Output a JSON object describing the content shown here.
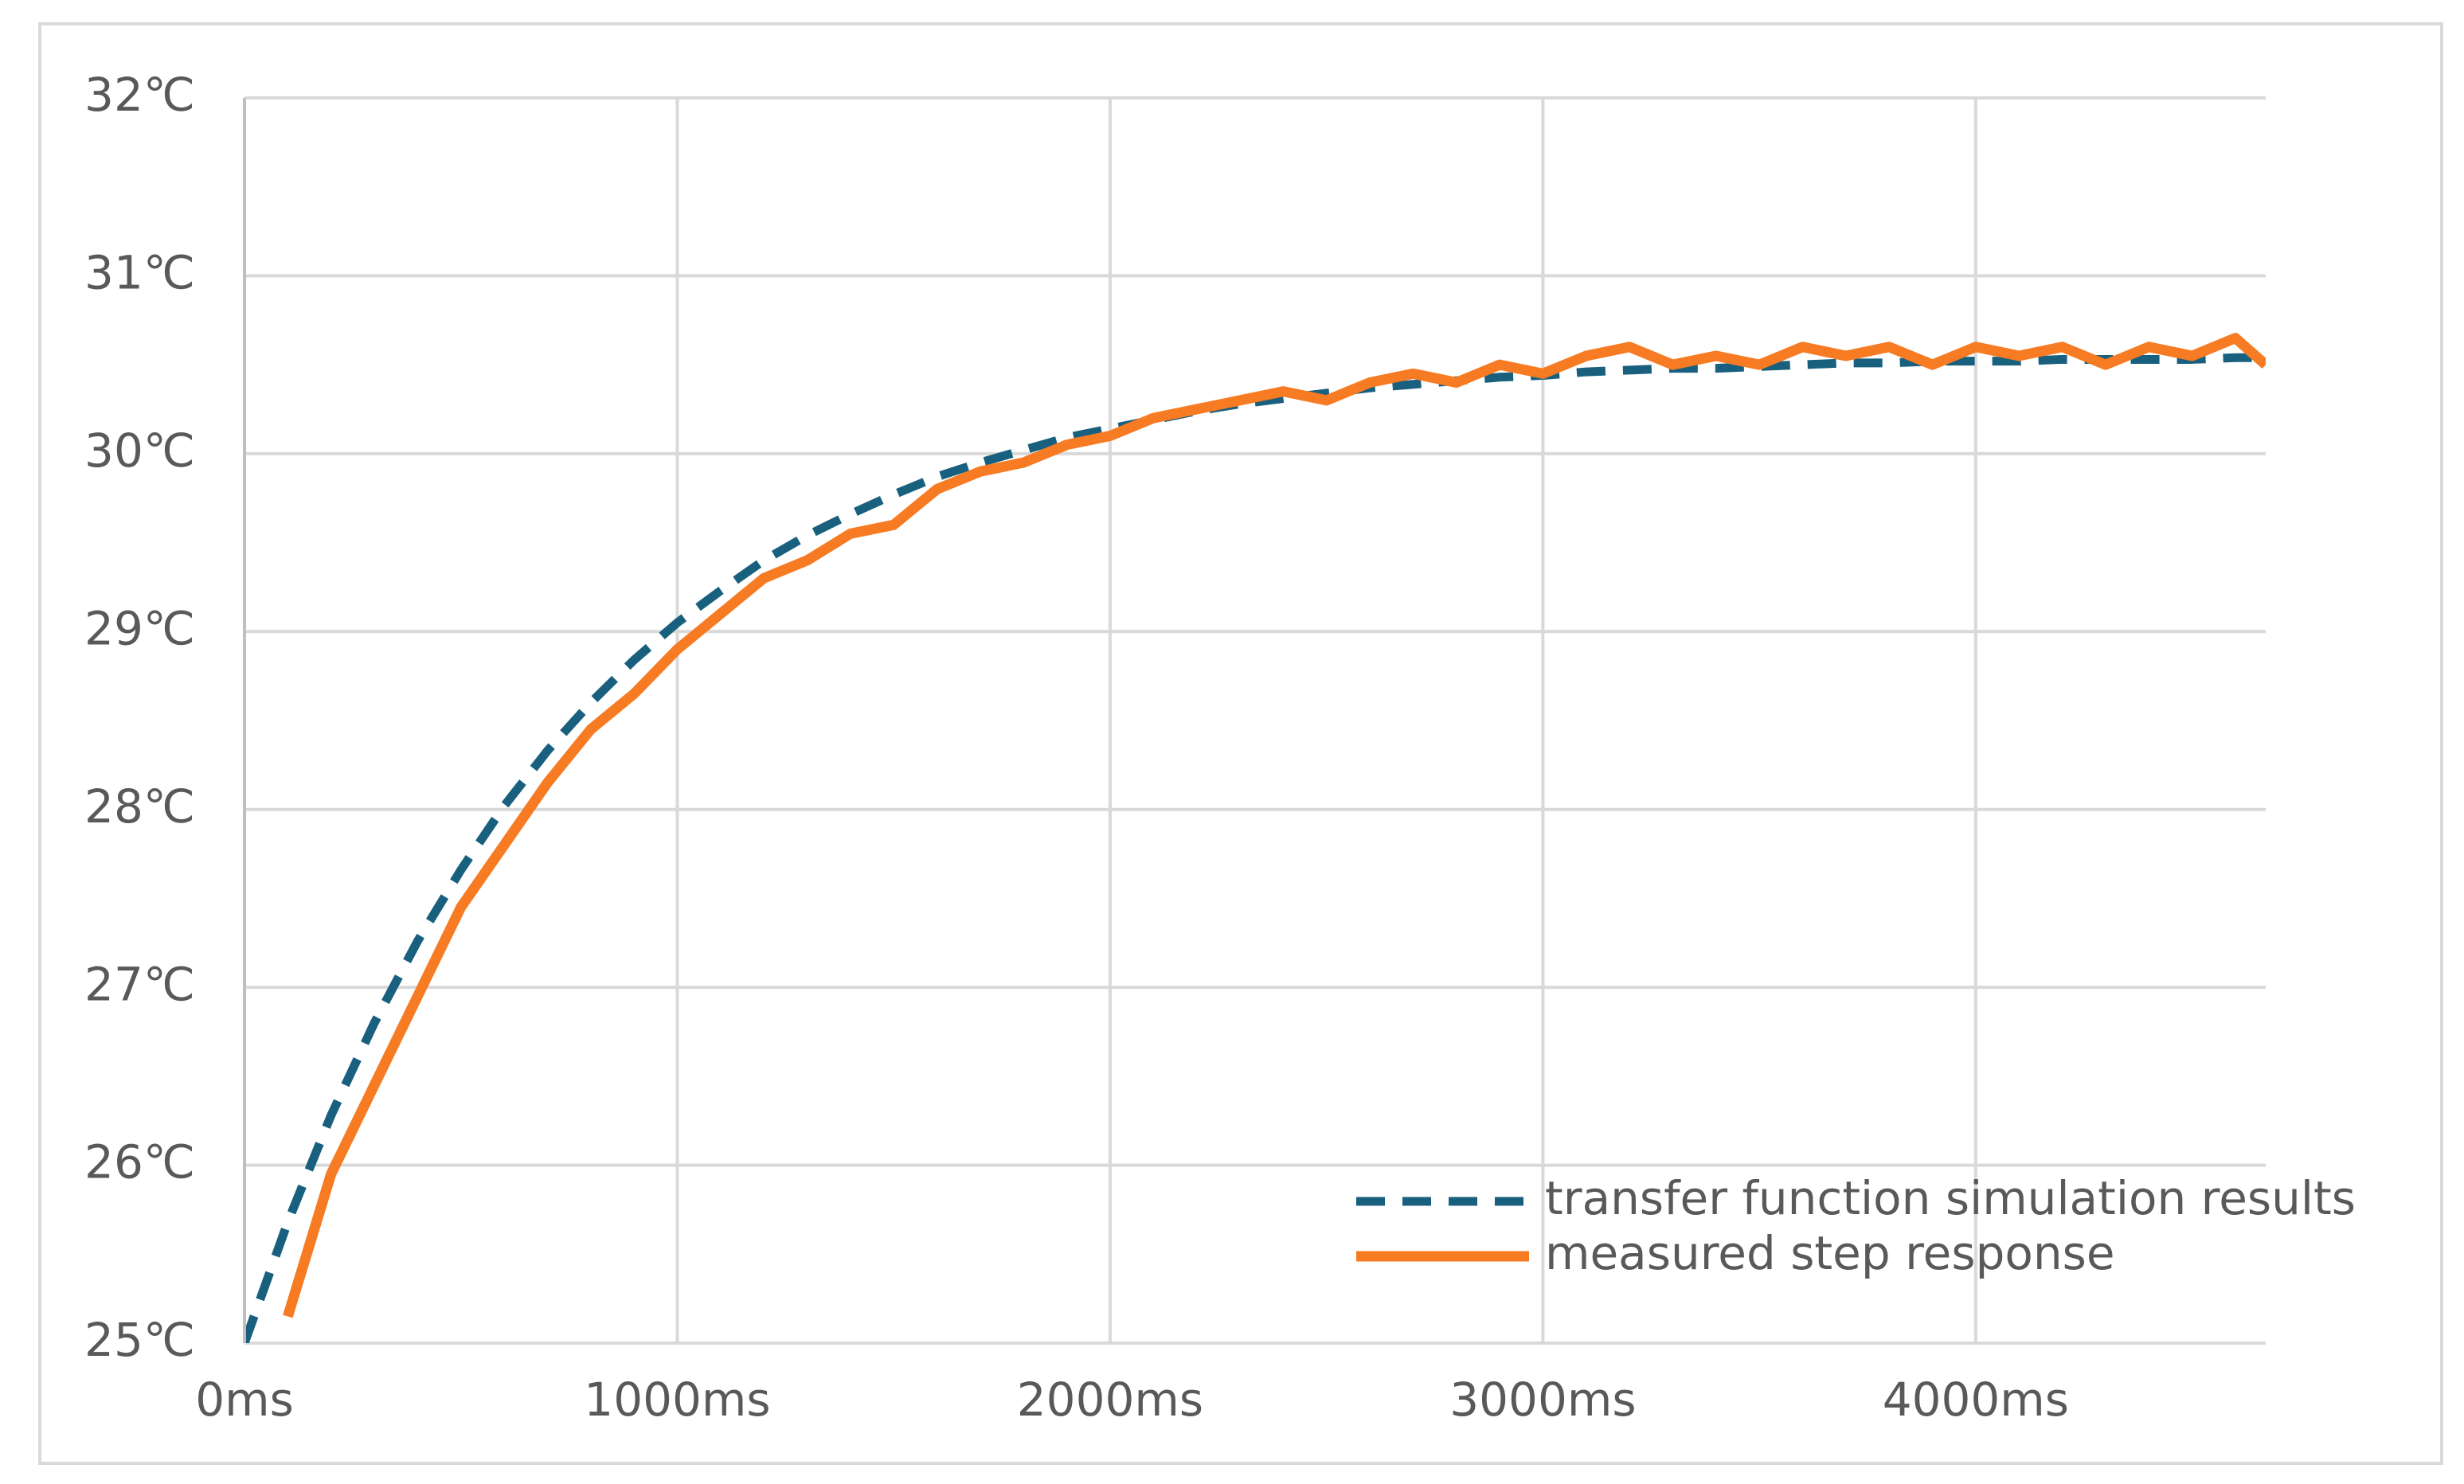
{
  "chart_data": {
    "type": "line",
    "x": [
      0,
      100,
      200,
      300,
      400,
      500,
      600,
      700,
      800,
      900,
      1000,
      1100,
      1200,
      1300,
      1400,
      1500,
      1600,
      1700,
      1800,
      1900,
      2000,
      2100,
      2200,
      2300,
      2400,
      2500,
      2600,
      2700,
      2800,
      2900,
      3000,
      3100,
      3200,
      3300,
      3400,
      3500,
      3600,
      3700,
      3800,
      3900,
      4000,
      4100,
      4200,
      4300,
      4400,
      4500,
      4600,
      4670
    ],
    "series": [
      {
        "name": "transfer function simulation results",
        "color": "#19607f",
        "dashed": true,
        "values": [
          25.0,
          25.68,
          26.28,
          26.8,
          27.26,
          27.66,
          28.02,
          28.33,
          28.6,
          28.84,
          29.05,
          29.23,
          29.4,
          29.54,
          29.66,
          29.77,
          29.87,
          29.95,
          30.02,
          30.09,
          30.14,
          30.19,
          30.24,
          30.28,
          30.31,
          30.34,
          30.37,
          30.39,
          30.41,
          30.43,
          30.44,
          30.46,
          30.47,
          30.48,
          30.48,
          30.49,
          30.5,
          30.51,
          30.51,
          30.52,
          30.52,
          30.52,
          30.53,
          30.53,
          30.53,
          30.53,
          30.54,
          30.54
        ]
      },
      {
        "name": "measured step response",
        "color": "#f77b22",
        "dashed": false,
        "values": [
          null,
          25.15,
          25.95,
          26.45,
          26.95,
          27.45,
          27.8,
          28.15,
          28.45,
          28.65,
          28.9,
          29.1,
          29.3,
          29.4,
          29.55,
          29.6,
          29.8,
          29.9,
          29.95,
          30.05,
          30.1,
          30.2,
          30.25,
          30.3,
          30.35,
          30.3,
          30.4,
          30.45,
          30.4,
          30.5,
          30.45,
          30.55,
          30.6,
          30.5,
          30.55,
          30.5,
          30.6,
          30.55,
          30.6,
          30.5,
          30.6,
          30.55,
          30.6,
          30.5,
          30.6,
          30.55,
          30.65,
          30.5
        ]
      }
    ],
    "xlim": [
      0,
      4670
    ],
    "xticks": [
      {
        "value": 0,
        "label": "0ms"
      },
      {
        "value": 1000,
        "label": "1000ms"
      },
      {
        "value": 2000,
        "label": "2000ms"
      },
      {
        "value": 3000,
        "label": "3000ms"
      },
      {
        "value": 4000,
        "label": "4000ms"
      }
    ],
    "ylim": [
      25,
      32
    ],
    "yticks": [
      {
        "value": 25,
        "label": "25℃"
      },
      {
        "value": 26,
        "label": "26℃"
      },
      {
        "value": 27,
        "label": "27℃"
      },
      {
        "value": 28,
        "label": "28℃"
      },
      {
        "value": 29,
        "label": "29℃"
      },
      {
        "value": 30,
        "label": "30℃"
      },
      {
        "value": 31,
        "label": "31℃"
      },
      {
        "value": 32,
        "label": "32℃"
      }
    ],
    "grid": true,
    "legend": "lower-right"
  }
}
